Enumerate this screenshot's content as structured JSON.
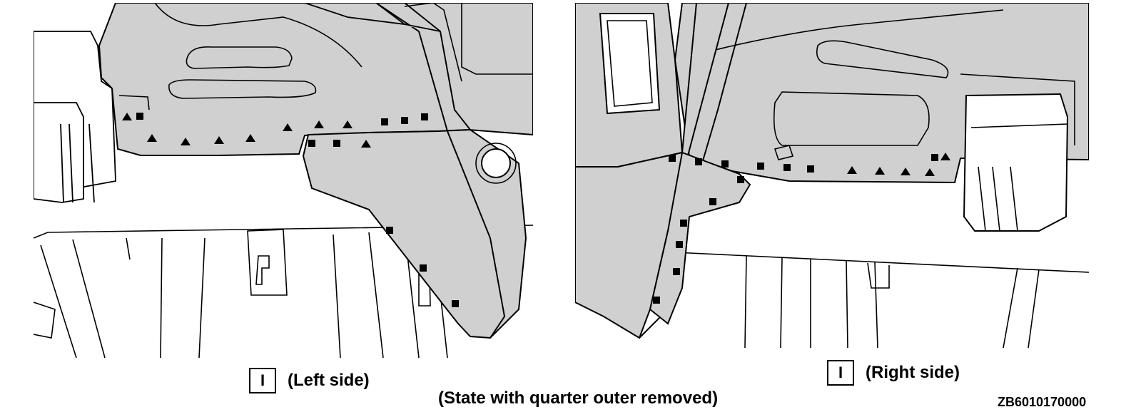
{
  "left_view": {
    "marker": "I",
    "label": "(Left side)"
  },
  "right_view": {
    "marker": "I",
    "label": "(Right side)"
  },
  "caption": "(State with quarter outer removed)",
  "figure_id": "ZB6010170000",
  "colors": {
    "panel_fill": "#d0d0d0",
    "line": "#000000",
    "background": "#ffffff"
  },
  "legend_symbols": [
    "square-marker",
    "triangle-marker"
  ]
}
